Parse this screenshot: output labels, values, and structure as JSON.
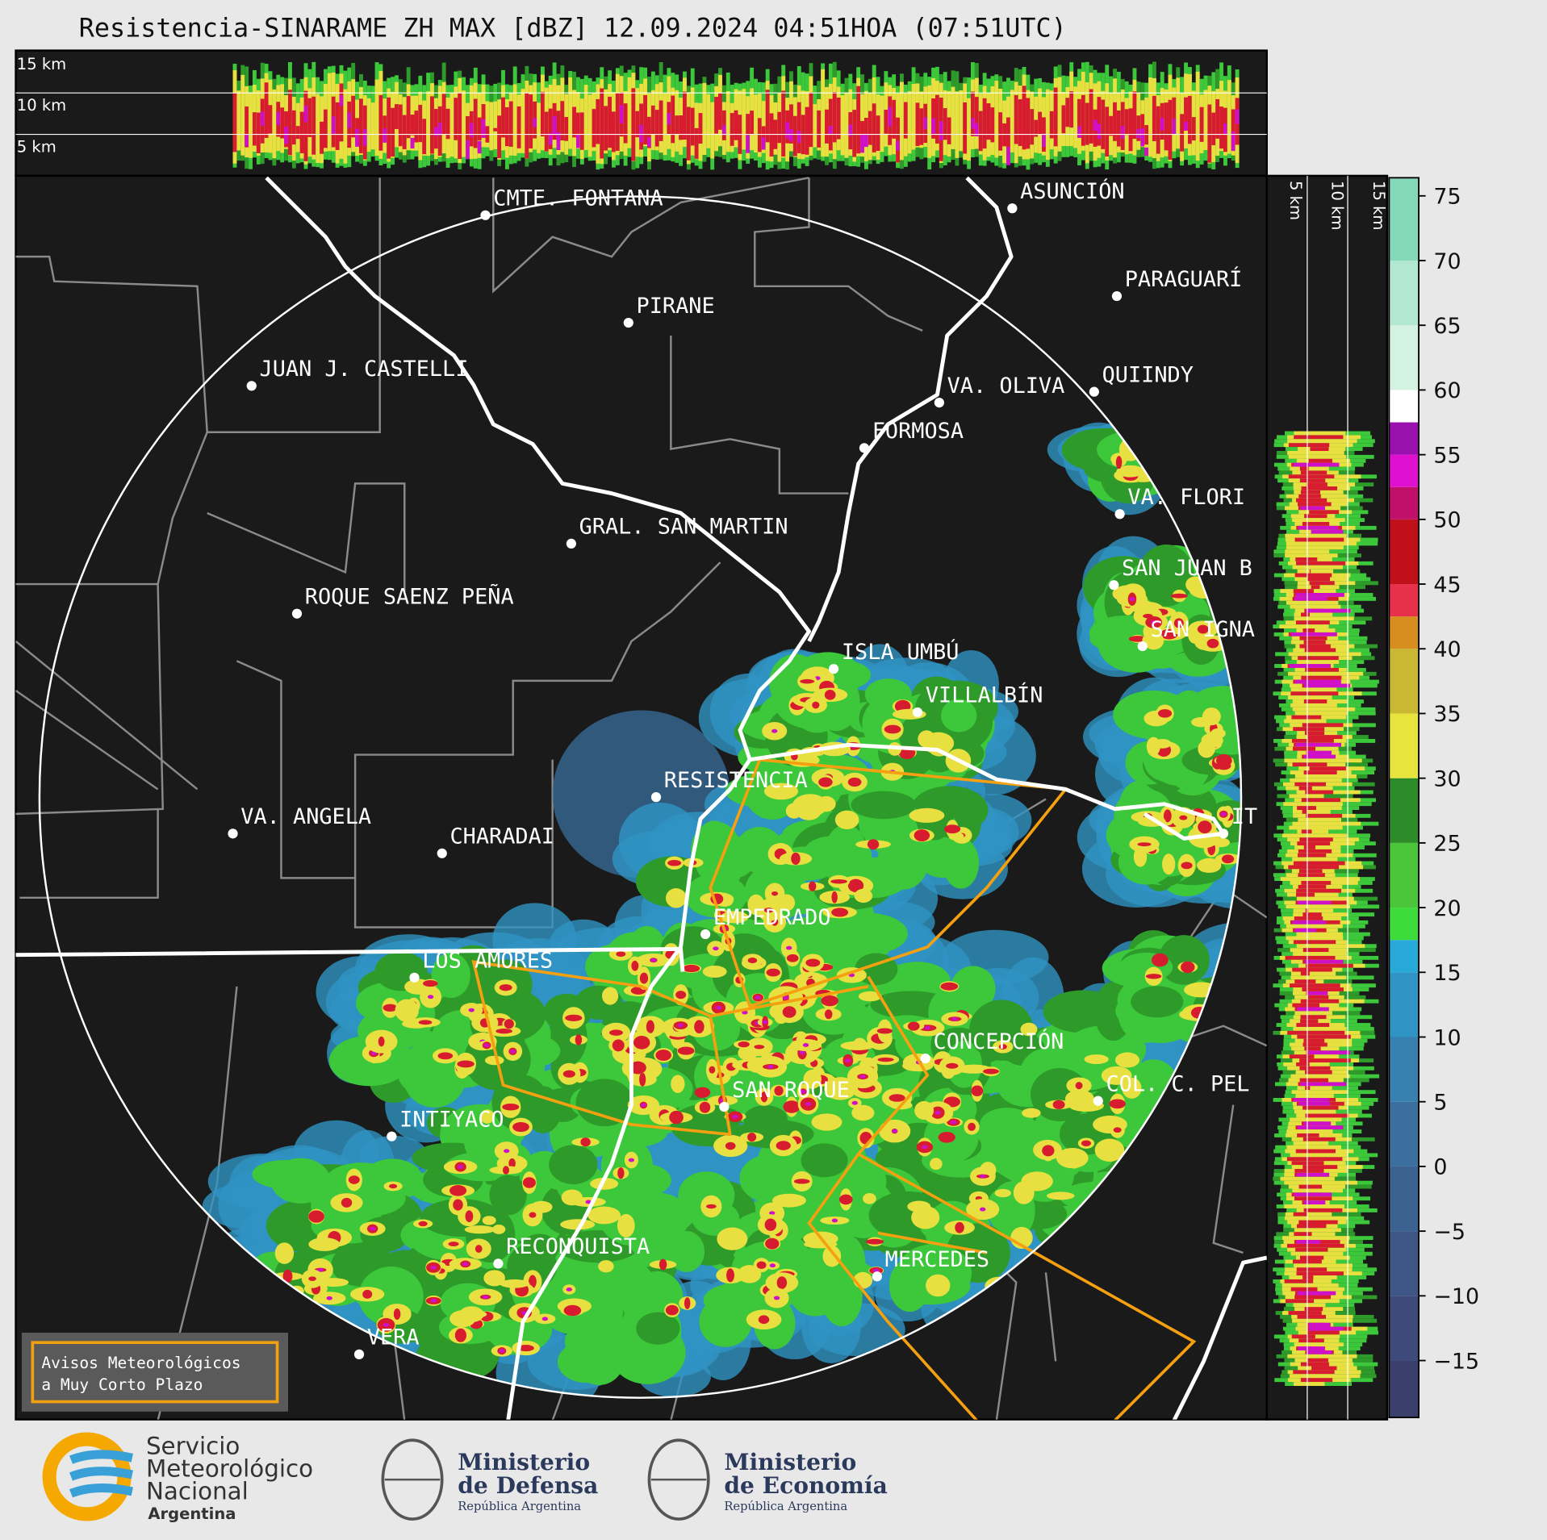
{
  "header": {
    "title": "Resistencia-SINARAME ZH MAX [dBZ] 12.09.2024 04:51HOA (07:51UTC)"
  },
  "top_panel": {
    "height_labels": [
      "15 km",
      "10 km",
      "5 km"
    ]
  },
  "side_panel": {
    "height_labels": [
      "5 km",
      "10 km",
      "15 km"
    ]
  },
  "map": {
    "places": [
      "CMTE. FONTANA",
      "ASUNCIÓN",
      "PARAGUARÍ",
      "PIRANE",
      "JUAN J. CASTELLI",
      "VA. OLIVA",
      "QUIINDY",
      "FORMOSA",
      "VA. FLORI",
      "GRAL. SAN MARTIN",
      "SAN JUAN B",
      "ROQUE SAENZ PEÑA",
      "SAN IGNA",
      "ISLA UMBÚ",
      "VILLALBÍN",
      "RESISTENCIA",
      "VA. ANGELA",
      "CHARADAI",
      "IT",
      "EMPEDRADO",
      "LOS AMORES",
      "CONCEPCIÓN",
      "SAN ROQUE",
      "COL. C. PEL",
      "INTIYACO",
      "RECONQUISTA",
      "MERCEDES",
      "VERA"
    ]
  },
  "colorbar": {
    "ylim": [
      -19.4,
      76.4
    ],
    "ticks": [
      75,
      70,
      65,
      60,
      55,
      50,
      45,
      40,
      35,
      30,
      25,
      20,
      15,
      10,
      5,
      0,
      {
        "value": -5,
        "label": "−5"
      },
      {
        "value": -10,
        "label": "−10"
      },
      {
        "value": -15,
        "label": "−15"
      }
    ],
    "bounds": [
      -20,
      -15,
      -10,
      -5,
      0,
      5,
      10,
      15,
      17.5,
      20,
      25,
      30,
      35,
      40,
      42.5,
      45,
      50,
      52.5,
      55,
      57.5,
      60,
      65,
      70,
      77.5
    ],
    "colors": [
      "#3b3f6c",
      "#3e4a7a",
      "#3d5686",
      "#3b6291",
      "#3a6f9e",
      "#3780b0",
      "#2f93c3",
      "#28aad8",
      "#3ddc3a",
      "#4bc63a",
      "#2e8b2a",
      "#e8e43e",
      "#c9b832",
      "#d88e1e",
      "#e8304a",
      "#c0101a",
      "#c0106a",
      "#e010d0",
      "#9a10ae",
      "#ffffff",
      "#d4f2e2",
      "#b2e8d2",
      "#86d8ba"
    ]
  },
  "notice": {
    "lines": [
      "Avisos Meteorológicos",
      "a Muy Corto Plazo"
    ]
  },
  "logos": {
    "smn": [
      "Servicio",
      "Meteorológico",
      "Nacional",
      "Argentina"
    ],
    "defensa": [
      "Ministerio",
      "de Defensa",
      "República Argentina"
    ],
    "economia": [
      "Ministerio",
      "de Economía",
      "República Argentina"
    ]
  }
}
